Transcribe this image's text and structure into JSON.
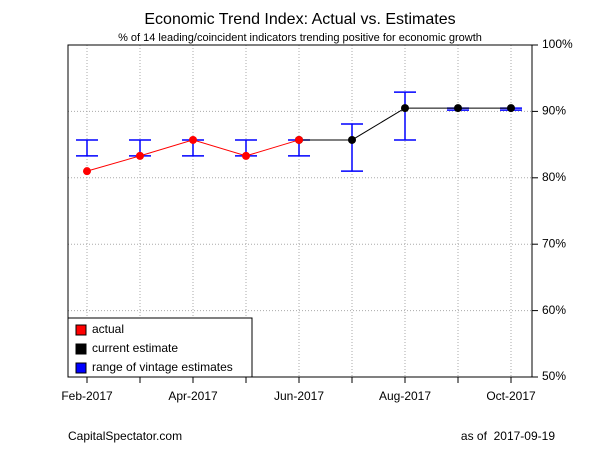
{
  "chart_data": {
    "type": "line",
    "title": "Economic Trend Index: Actual vs. Estimates",
    "subtitle": "% of 14 leading/coincident indicators trending positive for economic growth",
    "categories": [
      "Feb-2017",
      null,
      "Apr-2017",
      null,
      "Jun-2017",
      null,
      "Aug-2017",
      null,
      "Oct-2017"
    ],
    "series": [
      {
        "name": "actual",
        "color": "#ff0000",
        "values": [
          81.0,
          83.3,
          85.7,
          83.3,
          85.7,
          null,
          null,
          null,
          null
        ]
      },
      {
        "name": "current estimate",
        "color": "#000000",
        "values": [
          null,
          null,
          null,
          null,
          85.7,
          85.7,
          90.5,
          90.5,
          90.5
        ]
      },
      {
        "name": "range of vintage estimates",
        "color": "#0000ff",
        "low": [
          83.3,
          83.3,
          83.3,
          83.3,
          83.3,
          81.0,
          85.7,
          90.2,
          90.2
        ],
        "high": [
          85.7,
          85.7,
          85.7,
          85.7,
          85.7,
          88.1,
          92.9,
          90.5,
          90.5
        ]
      }
    ],
    "ylim": [
      50,
      100
    ],
    "yticks": [
      {
        "value": 50,
        "label": "50%"
      },
      {
        "value": 60,
        "label": "60%"
      },
      {
        "value": 70,
        "label": "70%"
      },
      {
        "value": 80,
        "label": "80%"
      },
      {
        "value": 90,
        "label": "90%"
      },
      {
        "value": 100,
        "label": "100%"
      }
    ],
    "y_axis_side": "right",
    "grid": true,
    "legend": "bottom-left",
    "source": "CapitalSpectator.com",
    "date_note": "as of  2017-09-19"
  }
}
